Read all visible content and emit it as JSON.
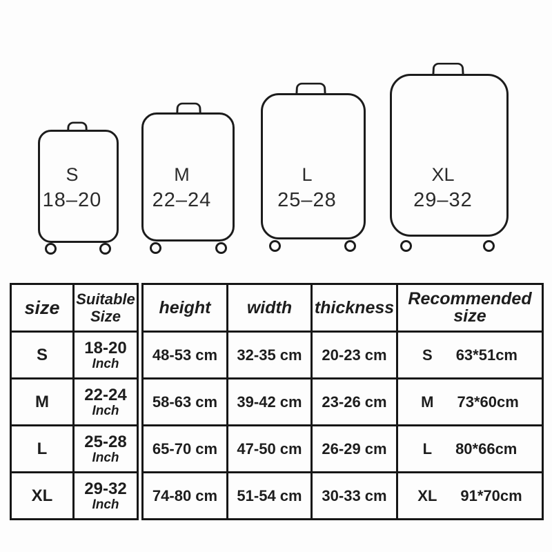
{
  "suitcases": [
    {
      "label": "S",
      "range": "18–20"
    },
    {
      "label": "M",
      "range": "22–24"
    },
    {
      "label": "L",
      "range": "25–28"
    },
    {
      "label": "XL",
      "range": "29–32"
    }
  ],
  "size_table": {
    "col_size": "size",
    "col_suitable": "Suitable Size",
    "rows": [
      {
        "size": "S",
        "range": "18-20",
        "unit": "Inch"
      },
      {
        "size": "M",
        "range": "22-24",
        "unit": "Inch"
      },
      {
        "size": "L",
        "range": "25-28",
        "unit": "Inch"
      },
      {
        "size": "XL",
        "range": "29-32",
        "unit": "Inch"
      }
    ]
  },
  "dimension_table": {
    "col_height": "height",
    "col_width": "width",
    "col_thickness": "thickness",
    "col_recommended": "Recommended size",
    "rows": [
      {
        "height": "48-53 cm",
        "width": "32-35 cm",
        "thickness": "20-23 cm",
        "size": "S",
        "cover": "63*51cm"
      },
      {
        "height": "58-63 cm",
        "width": "39-42 cm",
        "thickness": "23-26 cm",
        "size": "M",
        "cover": "73*60cm"
      },
      {
        "height": "65-70 cm",
        "width": "47-50 cm",
        "thickness": "26-29 cm",
        "size": "L",
        "cover": "80*66cm"
      },
      {
        "height": "74-80 cm",
        "width": "51-54 cm",
        "thickness": "30-33 cm",
        "size": "XL",
        "cover": "91*70cm"
      }
    ]
  }
}
